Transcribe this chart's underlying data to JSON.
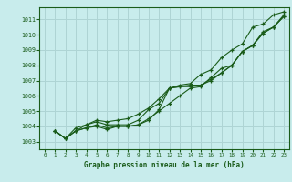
{
  "title": "Graphe pression niveau de la mer (hPa)",
  "bg_color": "#c8ecec",
  "grid_color": "#aed4d4",
  "line_color": "#1a5c1a",
  "marker_color": "#1a5c1a",
  "xlim": [
    -0.5,
    23.5
  ],
  "ylim": [
    1002.5,
    1011.8
  ],
  "xticks": [
    0,
    1,
    2,
    3,
    4,
    5,
    6,
    7,
    8,
    9,
    10,
    11,
    12,
    13,
    14,
    15,
    16,
    17,
    18,
    19,
    20,
    21,
    22,
    23
  ],
  "yticks": [
    1003,
    1004,
    1005,
    1006,
    1007,
    1008,
    1009,
    1010,
    1011
  ],
  "series": [
    [
      1003.7,
      1003.2,
      1003.7,
      1003.9,
      1004.1,
      1003.9,
      1004.0,
      1004.0,
      1004.1,
      1004.4,
      1005.1,
      1006.5,
      1006.6,
      1006.6,
      1006.7,
      1007.0,
      1007.5,
      1008.0,
      1008.9,
      1009.3,
      1010.1,
      1010.5,
      1011.2
    ],
    [
      1003.7,
      1003.2,
      1003.9,
      1004.1,
      1004.3,
      1004.1,
      1004.1,
      1004.1,
      1004.4,
      1005.1,
      1005.5,
      1006.5,
      1006.6,
      1006.7,
      1006.7,
      1007.1,
      1007.5,
      1008.0,
      1008.9,
      1009.3,
      1010.2,
      1010.5,
      1011.3
    ],
    [
      1003.7,
      1003.2,
      1003.7,
      1003.9,
      1004.0,
      1003.8,
      1004.0,
      1004.0,
      1004.1,
      1004.5,
      1005.0,
      1005.5,
      1006.0,
      1006.5,
      1006.6,
      1007.2,
      1007.8,
      1008.0,
      1008.9,
      1009.3,
      1010.1,
      1010.5,
      1011.2
    ],
    [
      1003.7,
      1003.2,
      1003.7,
      1004.1,
      1004.4,
      1004.3,
      1004.4,
      1004.5,
      1004.8,
      1005.2,
      1005.8,
      1006.5,
      1006.7,
      1006.8,
      1007.4,
      1007.7,
      1008.5,
      1009.0,
      1009.4,
      1010.5,
      1010.7,
      1011.3,
      1011.5
    ]
  ],
  "x_start": 1,
  "figwidth": 3.2,
  "figheight": 2.0,
  "dpi": 100
}
